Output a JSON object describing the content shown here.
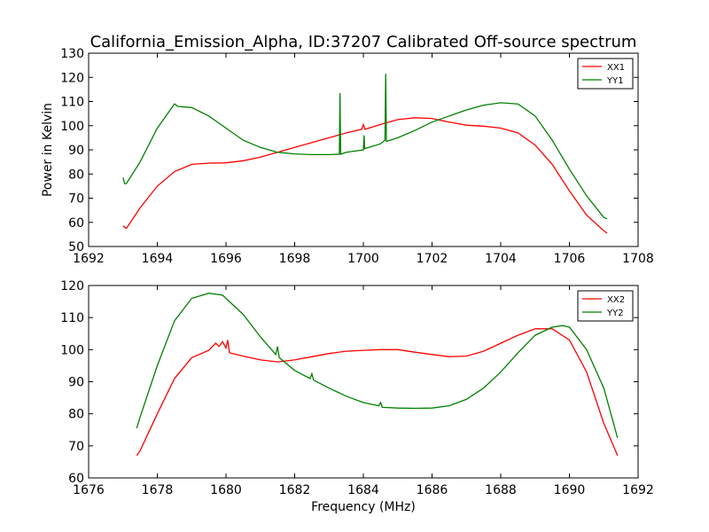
{
  "figure": {
    "title": "California_Emission_Alpha, ID:37207 Calibrated Off-source spectrum",
    "ylabel": "Power in Kelvin",
    "xlabel": "Frequency (MHz)"
  },
  "chart_data": [
    {
      "type": "line",
      "xlim": [
        1692,
        1708
      ],
      "ylim": [
        50,
        130
      ],
      "xticks": [
        1692,
        1694,
        1696,
        1698,
        1700,
        1702,
        1704,
        1706,
        1708
      ],
      "yticks": [
        50,
        60,
        70,
        80,
        90,
        100,
        110,
        120,
        130
      ],
      "legend_position": "top-right",
      "series": [
        {
          "name": "XX1",
          "color": "#ff0000",
          "x": [
            1693.0,
            1693.1,
            1693.5,
            1694.0,
            1694.5,
            1695.0,
            1695.5,
            1696.0,
            1696.5,
            1697.0,
            1697.5,
            1698.0,
            1698.5,
            1699.0,
            1699.5,
            1699.95,
            1700.0,
            1700.05,
            1700.5,
            1701.0,
            1701.5,
            1702.0,
            1702.5,
            1703.0,
            1703.5,
            1704.0,
            1704.5,
            1705.0,
            1705.5,
            1706.0,
            1706.5,
            1707.0,
            1707.1
          ],
          "y": [
            58.5,
            57.5,
            66,
            75,
            81,
            84,
            84.5,
            84.6,
            85.5,
            87,
            89,
            91,
            93,
            95,
            97,
            98.5,
            100.5,
            98.5,
            100.5,
            102.5,
            103.3,
            103,
            101.5,
            100.2,
            99.8,
            99,
            97,
            92,
            84,
            73,
            63,
            56.5,
            55.5
          ]
        },
        {
          "name": "YY1",
          "color": "#008000",
          "x": [
            1693.0,
            1693.05,
            1693.1,
            1693.5,
            1694.0,
            1694.5,
            1694.6,
            1695.0,
            1695.5,
            1696.0,
            1696.5,
            1697.0,
            1697.5,
            1698.0,
            1698.5,
            1699.0,
            1699.3,
            1699.32,
            1699.34,
            1699.5,
            1700.0,
            1700.02,
            1700.04,
            1700.5,
            1700.63,
            1700.65,
            1700.67,
            1701.0,
            1701.5,
            1702.0,
            1702.5,
            1703.0,
            1703.5,
            1704.0,
            1704.5,
            1705.0,
            1705.5,
            1706.0,
            1706.5,
            1707.0,
            1707.1
          ],
          "y": [
            78.5,
            76,
            76,
            85,
            99,
            109,
            108,
            107.5,
            104,
            99,
            94,
            91,
            89,
            88.3,
            88,
            88,
            88.2,
            113.5,
            88.2,
            89,
            90,
            96,
            90.5,
            92.5,
            94,
            121.5,
            93.5,
            95,
            98,
            101.5,
            104,
            106.5,
            108.5,
            109.5,
            109,
            104,
            94,
            82,
            71,
            62,
            61.5
          ]
        }
      ]
    },
    {
      "type": "line",
      "xlim": [
        1676,
        1692
      ],
      "ylim": [
        60,
        120
      ],
      "xticks": [
        1676,
        1678,
        1680,
        1682,
        1684,
        1686,
        1688,
        1690,
        1692
      ],
      "yticks": [
        60,
        70,
        80,
        90,
        100,
        110,
        120
      ],
      "legend_position": "top-right",
      "series": [
        {
          "name": "XX2",
          "color": "#ff0000",
          "x": [
            1677.4,
            1677.5,
            1678.0,
            1678.5,
            1679.0,
            1679.5,
            1679.7,
            1679.8,
            1679.9,
            1680.0,
            1680.05,
            1680.1,
            1680.5,
            1681.0,
            1681.5,
            1682.0,
            1682.5,
            1683.0,
            1683.5,
            1684.0,
            1684.5,
            1685.0,
            1685.5,
            1686.0,
            1686.5,
            1687.0,
            1687.5,
            1688.0,
            1688.5,
            1689.0,
            1689.5,
            1690.0,
            1690.5,
            1691.0,
            1691.4
          ],
          "y": [
            67,
            68.5,
            80,
            91,
            97.5,
            99.8,
            102,
            101,
            102.5,
            100.5,
            103,
            99,
            98,
            96.8,
            96.2,
            96.8,
            97.8,
            98.8,
            99.5,
            99.8,
            100,
            100,
            99.2,
            98.5,
            97.8,
            98,
            99.5,
            102,
            104.5,
            106.5,
            106.5,
            103,
            93,
            77,
            67
          ]
        },
        {
          "name": "YY2",
          "color": "#008000",
          "x": [
            1677.4,
            1677.5,
            1678.0,
            1678.5,
            1679.0,
            1679.5,
            1679.9,
            1680.0,
            1680.5,
            1681.0,
            1681.45,
            1681.5,
            1681.55,
            1682.0,
            1682.45,
            1682.5,
            1682.55,
            1683.0,
            1683.5,
            1684.0,
            1684.45,
            1684.5,
            1684.55,
            1685.0,
            1685.5,
            1686.0,
            1686.5,
            1687.0,
            1687.5,
            1688.0,
            1688.5,
            1689.0,
            1689.5,
            1689.8,
            1690.0,
            1690.5,
            1691.0,
            1691.4
          ],
          "y": [
            75.5,
            79,
            95,
            109,
            116,
            117.6,
            117,
            116,
            111,
            104,
            98.5,
            101,
            97.5,
            93.5,
            91,
            92.5,
            90.5,
            88,
            85.5,
            83.5,
            82.5,
            83.5,
            82,
            81.8,
            81.7,
            81.8,
            82.5,
            84.5,
            88,
            93,
            99,
            104.5,
            107,
            107.5,
            107,
            100,
            88,
            72.5
          ]
        }
      ]
    }
  ]
}
